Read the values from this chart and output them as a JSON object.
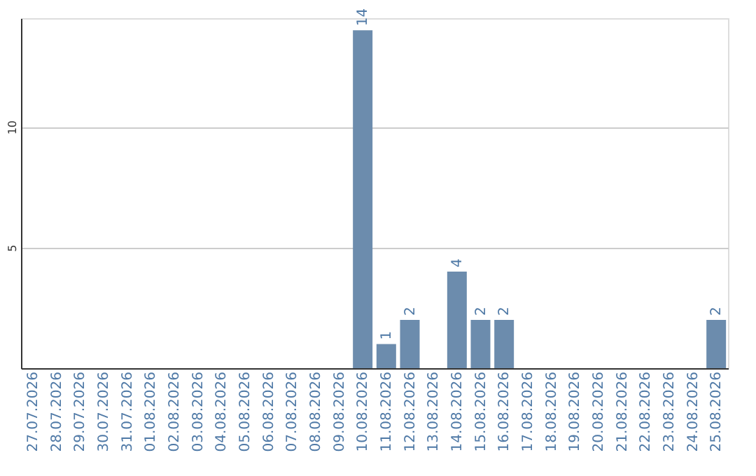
{
  "chart_data": {
    "type": "bar",
    "categories": [
      "27.07.2026",
      "28.07.2026",
      "29.07.2026",
      "30.07.2026",
      "31.07.2026",
      "01.08.2026",
      "02.08.2026",
      "03.08.2026",
      "04.08.2026",
      "05.08.2026",
      "06.08.2026",
      "07.08.2026",
      "08.08.2026",
      "09.08.2026",
      "10.08.2026",
      "11.08.2026",
      "12.08.2026",
      "13.08.2026",
      "14.08.2026",
      "15.08.2026",
      "16.08.2026",
      "17.08.2026",
      "18.08.2026",
      "19.08.2026",
      "20.08.2026",
      "21.08.2026",
      "22.08.2026",
      "23.08.2026",
      "24.08.2026",
      "25.08.2026"
    ],
    "values": [
      0,
      0,
      0,
      0,
      0,
      0,
      0,
      0,
      0,
      0,
      0,
      0,
      0,
      0,
      14,
      1,
      2,
      0,
      4,
      2,
      2,
      0,
      0,
      0,
      0,
      0,
      0,
      0,
      0,
      2
    ],
    "value_labels": [
      null,
      null,
      null,
      null,
      null,
      null,
      null,
      null,
      null,
      null,
      null,
      null,
      null,
      null,
      "14",
      "1",
      "2",
      null,
      "4",
      "2",
      "2",
      null,
      null,
      null,
      null,
      null,
      null,
      null,
      null,
      "2"
    ],
    "color": "#6c8cad",
    "ylim": [
      0,
      14.5
    ],
    "yticks": [
      5,
      10
    ],
    "grid": "y"
  }
}
